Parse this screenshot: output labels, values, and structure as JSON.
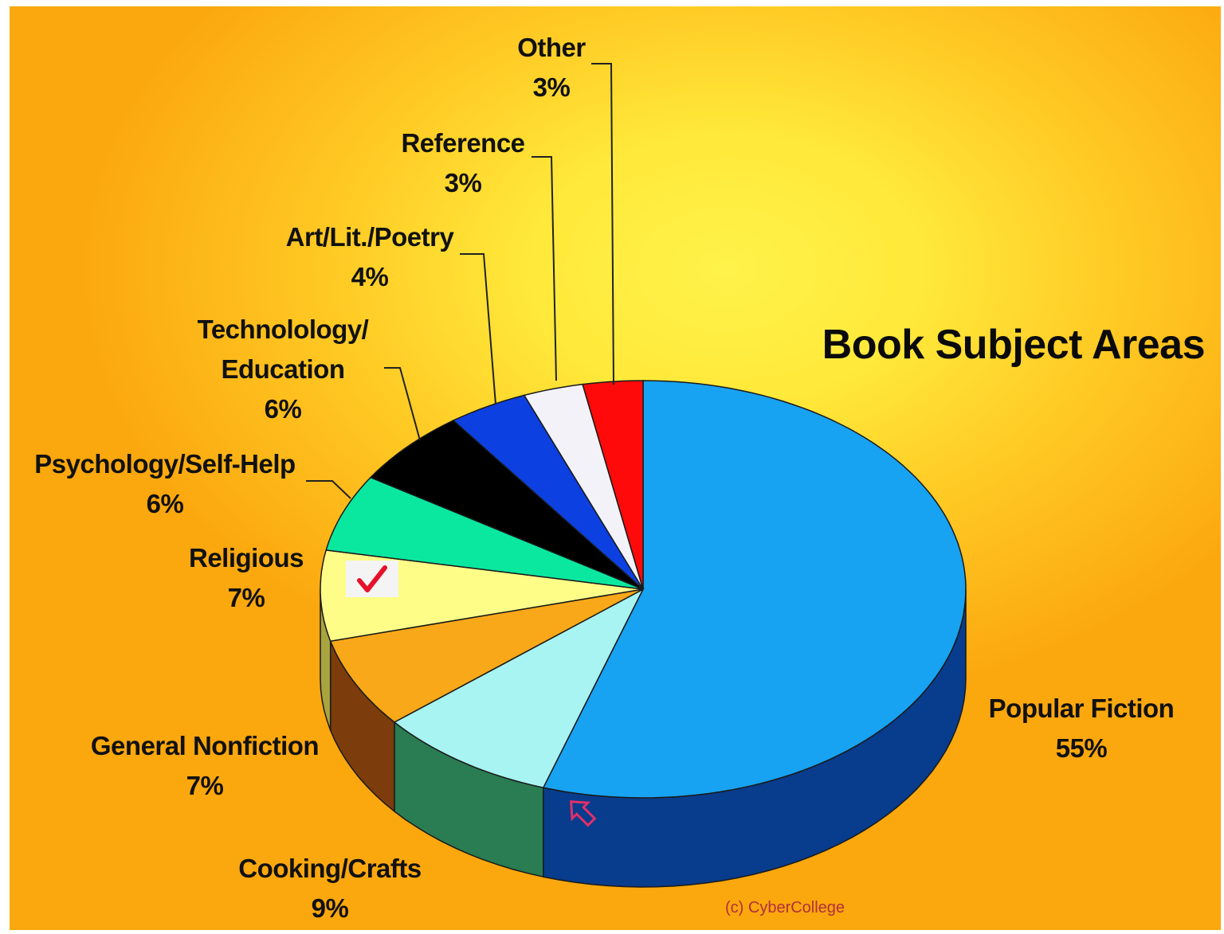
{
  "chart_data": {
    "type": "pie",
    "title": "Book Subject Areas",
    "credit": "(c) CyberCollege",
    "start_angle_deg": 0,
    "slices": [
      {
        "label": "Popular Fiction",
        "label_lines": [
          "Popular Fiction",
          "55%"
        ],
        "value": 55,
        "color": "#18a2f2",
        "side_color": "#083c8c"
      },
      {
        "label": "Cooking/Crafts",
        "label_lines": [
          "Cooking/Crafts",
          "9%"
        ],
        "value": 9,
        "color": "#a8f4f2",
        "side_color": "#2a7c52"
      },
      {
        "label": "General Nonfiction",
        "label_lines": [
          "General Nonfiction",
          "7%"
        ],
        "value": 7,
        "color": "#f8a818",
        "side_color": "#7c3c0c"
      },
      {
        "label": "Religious",
        "label_lines": [
          "Religious",
          "7%"
        ],
        "value": 7,
        "color": "#fdfd88",
        "side_color": "#a8a440"
      },
      {
        "label": "Psychology/Self-Help",
        "label_lines": [
          "Psychology/Self-Help",
          "6%"
        ],
        "value": 6,
        "color": "#0ae8a0",
        "side_color": "#07805a"
      },
      {
        "label": "Technolology/Education",
        "label_lines": [
          "Technolology/",
          "Education",
          "6%"
        ],
        "value": 6,
        "color": "#000000",
        "side_color": "#000000"
      },
      {
        "label": "Art/Lit./Poetry",
        "label_lines": [
          "Art/Lit./Poetry",
          "4%"
        ],
        "value": 4,
        "color": "#0c40e0",
        "side_color": "#061e70"
      },
      {
        "label": "Reference",
        "label_lines": [
          "Reference",
          "3%"
        ],
        "value": 3,
        "color": "#f2f2f8",
        "side_color": "#9a9aa8"
      },
      {
        "label": "Other",
        "label_lines": [
          "Other",
          "3%"
        ],
        "value": 3,
        "color": "#ff0a0a",
        "side_color": "#8a0000"
      }
    ]
  },
  "icons": {
    "checkmark": "checkmark-icon",
    "cursor": "cursor-arrow-icon"
  }
}
